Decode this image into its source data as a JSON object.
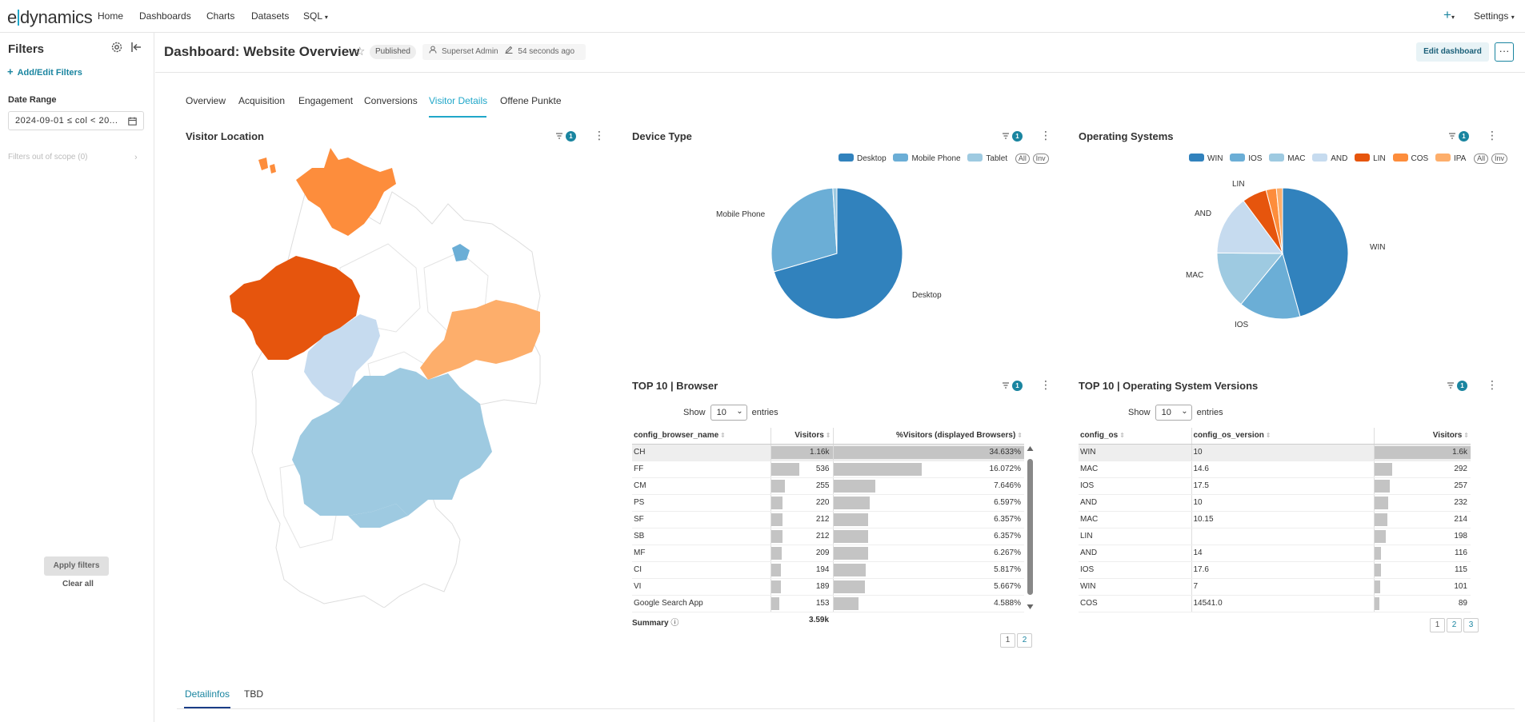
{
  "app": {
    "logo_left": "e",
    "logo_right": "dynamics",
    "nav": [
      "Home",
      "Dashboards",
      "Charts",
      "Datasets",
      "SQL"
    ],
    "settings": "Settings"
  },
  "filters_panel": {
    "title": "Filters",
    "add_edit": "Add/Edit Filters",
    "date_range_label": "Date Range",
    "date_range_value": "2024-09-01 ≤ col < 20...",
    "out_of_scope": "Filters out of scope (0)",
    "apply": "Apply filters",
    "clear": "Clear all"
  },
  "dashboard": {
    "title": "Dashboard: Website Overview",
    "status": "Published",
    "owner": "Superset Admin",
    "modified": "54 seconds ago",
    "edit_button": "Edit dashboard",
    "more": "···"
  },
  "tabs": [
    "Overview",
    "Acquisition",
    "Engagement",
    "Conversions",
    "Visitor Details",
    "Offene Punkte"
  ],
  "active_tab": "Visitor Details",
  "bottom_tabs": [
    "Detailinfos",
    "TBD"
  ],
  "charts": {
    "visitor_location": {
      "title": "Visitor Location",
      "filter_count": "1"
    },
    "device_type": {
      "title": "Device Type",
      "filter_count": "1",
      "legend_all": "All",
      "legend_inv": "Inv"
    },
    "operating_systems": {
      "title": "Operating Systems",
      "filter_count": "1",
      "legend_all": "All",
      "legend_inv": "Inv"
    },
    "browser_table": {
      "title": "TOP 10 | Browser",
      "filter_count": "1",
      "show_label": "Show",
      "entries_label": "entries",
      "page_size": "10",
      "columns": [
        "config_browser_name",
        "Visitors",
        "%Visitors (displayed Browsers)"
      ],
      "summary_label": "Summary",
      "summary_value": "3.59k",
      "pages": [
        "1",
        "2"
      ]
    },
    "os_versions_table": {
      "title": "TOP 10 | Operating System Versions",
      "filter_count": "1",
      "show_label": "Show",
      "entries_label": "entries",
      "page_size": "10",
      "columns": [
        "config_os",
        "config_os_version",
        "Visitors"
      ],
      "pages": [
        "1",
        "2",
        "3"
      ]
    }
  },
  "chart_data": [
    {
      "type": "pie",
      "chart": "Device Type",
      "categories": [
        "Desktop",
        "Mobile Phone",
        "Tablet"
      ],
      "values": [
        70.5,
        28.5,
        1.0
      ],
      "colors": [
        "#3182bd",
        "#6baed6",
        "#9ecae1"
      ],
      "legend": "top-right"
    },
    {
      "type": "pie",
      "chart": "Operating Systems",
      "categories": [
        "WIN",
        "IOS",
        "MAC",
        "AND",
        "LIN",
        "COS",
        "IPA"
      ],
      "values": [
        45.0,
        15.0,
        14.0,
        14.5,
        6.0,
        2.5,
        1.5
      ],
      "colors": [
        "#3182bd",
        "#6baed6",
        "#9ecae1",
        "#c6dbef",
        "#e6550d",
        "#fd8d3c",
        "#fdae6b"
      ],
      "legend": "top-right"
    },
    {
      "type": "table",
      "chart": "TOP 10 | Browser",
      "columns": [
        "config_browser_name",
        "Visitors",
        "%Visitors (displayed Browsers)"
      ],
      "rows": [
        [
          "CH",
          "1.16k",
          "34.633%"
        ],
        [
          "FF",
          "536",
          "16.072%"
        ],
        [
          "CM",
          "255",
          "7.646%"
        ],
        [
          "PS",
          "220",
          "6.597%"
        ],
        [
          "SF",
          "212",
          "6.357%"
        ],
        [
          "SB",
          "212",
          "6.357%"
        ],
        [
          "MF",
          "209",
          "6.267%"
        ],
        [
          "CI",
          "194",
          "5.817%"
        ],
        [
          "VI",
          "189",
          "5.667%"
        ],
        [
          "Google Search App",
          "153",
          "4.588%"
        ]
      ],
      "visitors_numeric": [
        1155,
        536,
        255,
        220,
        212,
        212,
        209,
        194,
        189,
        153
      ],
      "pct_numeric": [
        34.633,
        16.072,
        7.646,
        6.597,
        6.357,
        6.357,
        6.267,
        5.817,
        5.667,
        4.588
      ]
    },
    {
      "type": "table",
      "chart": "TOP 10 | Operating System Versions",
      "columns": [
        "config_os",
        "config_os_version",
        "Visitors"
      ],
      "rows": [
        [
          "WIN",
          "10",
          "1.6k"
        ],
        [
          "MAC",
          "14.6",
          "292"
        ],
        [
          "IOS",
          "17.5",
          "257"
        ],
        [
          "AND",
          "10",
          "232"
        ],
        [
          "MAC",
          "10.15",
          "214"
        ],
        [
          "LIN",
          "",
          "198"
        ],
        [
          "AND",
          "14",
          "116"
        ],
        [
          "IOS",
          "17.6",
          "115"
        ],
        [
          "WIN",
          "7",
          "101"
        ],
        [
          "COS",
          "14541.0",
          "89"
        ]
      ],
      "visitors_numeric": [
        1600,
        292,
        257,
        232,
        214,
        198,
        116,
        115,
        101,
        89
      ]
    }
  ]
}
